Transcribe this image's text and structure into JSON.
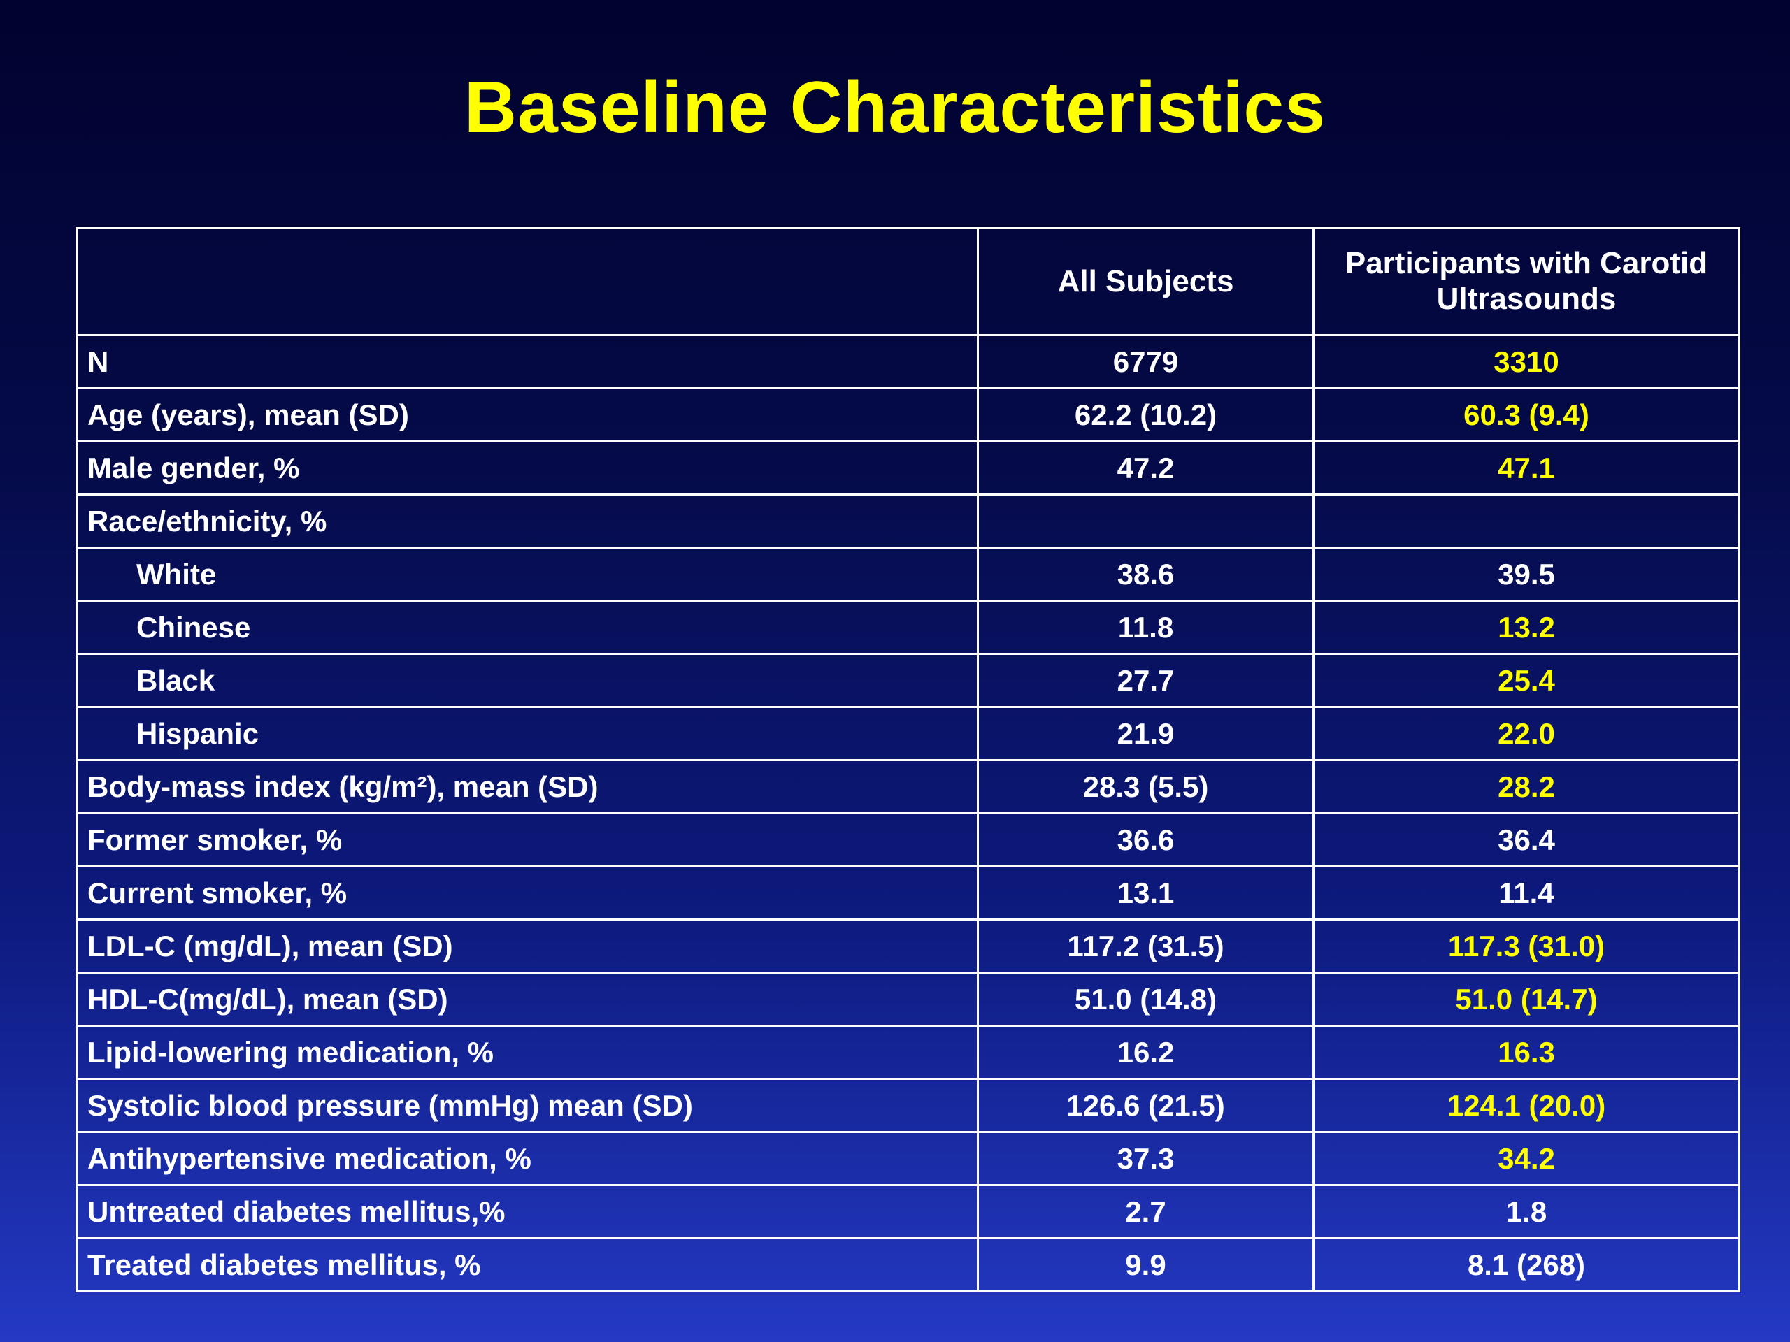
{
  "slide": {
    "title": "Baseline Characteristics",
    "colors": {
      "title": "#ffff00",
      "highlight": "#ffff00",
      "text": "#ffffff",
      "border": "#ffffff",
      "background_top": "#01022e",
      "background_bottom": "#2439c4"
    }
  },
  "table": {
    "headers": [
      "",
      "All Subjects",
      "Participants with Carotid Ultrasounds"
    ],
    "rows": [
      {
        "label": "N",
        "indent": false,
        "all": "6779",
        "carotid": "3310",
        "carotid_highlight": true
      },
      {
        "label": "Age (years), mean (SD)",
        "indent": false,
        "all": "62.2 (10.2)",
        "carotid": "60.3 (9.4)",
        "carotid_highlight": true
      },
      {
        "label": "Male gender, %",
        "indent": false,
        "all": "47.2",
        "carotid": "47.1",
        "carotid_highlight": true
      },
      {
        "label": "Race/ethnicity, %",
        "indent": false,
        "all": "",
        "carotid": "",
        "carotid_highlight": false
      },
      {
        "label": "White",
        "indent": true,
        "all": "38.6",
        "carotid": "39.5",
        "carotid_highlight": false
      },
      {
        "label": "Chinese",
        "indent": true,
        "all": "11.8",
        "carotid": "13.2",
        "carotid_highlight": true
      },
      {
        "label": "Black",
        "indent": true,
        "all": "27.7",
        "carotid": "25.4",
        "carotid_highlight": true
      },
      {
        "label": "Hispanic",
        "indent": true,
        "all": "21.9",
        "carotid": "22.0",
        "carotid_highlight": true
      },
      {
        "label": "Body-mass index (kg/m²), mean (SD)",
        "indent": false,
        "all": "28.3 (5.5)",
        "carotid": "28.2",
        "carotid_highlight": true
      },
      {
        "label": "Former smoker, %",
        "indent": false,
        "all": "36.6",
        "carotid": "36.4",
        "carotid_highlight": false
      },
      {
        "label": "Current smoker, %",
        "indent": false,
        "all": "13.1",
        "carotid": "11.4",
        "carotid_highlight": false
      },
      {
        "label": "LDL-C (mg/dL), mean (SD)",
        "indent": false,
        "all": "117.2 (31.5)",
        "carotid": "117.3 (31.0)",
        "carotid_highlight": true
      },
      {
        "label": "HDL-C(mg/dL), mean (SD)",
        "indent": false,
        "all": "51.0 (14.8)",
        "carotid": "51.0 (14.7)",
        "carotid_highlight": true
      },
      {
        "label": "Lipid-lowering medication, %",
        "indent": false,
        "all": "16.2",
        "carotid": "16.3",
        "carotid_highlight": true
      },
      {
        "label": "Systolic blood pressure (mmHg) mean (SD)",
        "indent": false,
        "all": "126.6 (21.5)",
        "carotid": "124.1 (20.0)",
        "carotid_highlight": true
      },
      {
        "label": "Antihypertensive medication, %",
        "indent": false,
        "all": "37.3",
        "carotid": "34.2",
        "carotid_highlight": true
      },
      {
        "label": "Untreated diabetes mellitus,%",
        "indent": false,
        "all": "2.7",
        "carotid": "1.8",
        "carotid_highlight": false
      },
      {
        "label": "Treated diabetes mellitus, %",
        "indent": false,
        "all": "9.9",
        "carotid": "8.1 (268)",
        "carotid_highlight": false
      }
    ]
  }
}
